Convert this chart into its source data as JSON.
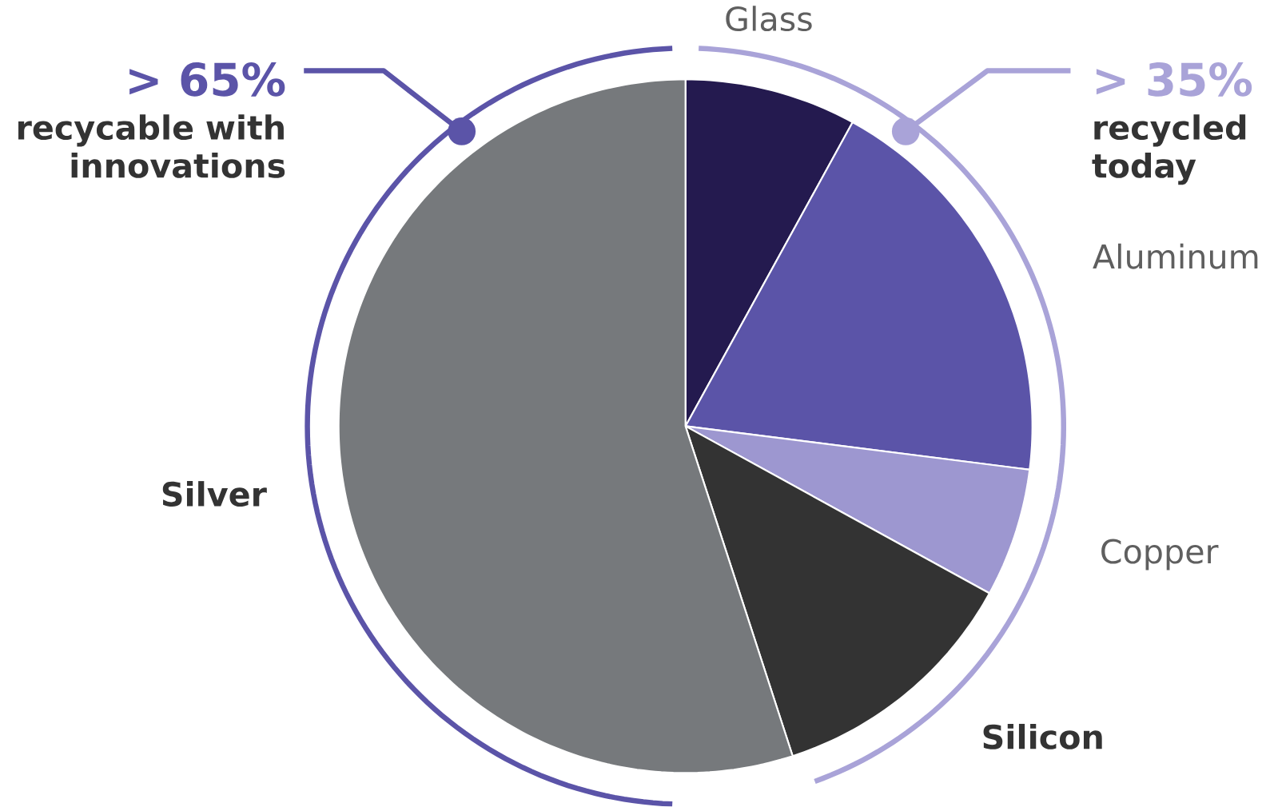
{
  "chart_data": {
    "type": "pie",
    "categories": [
      "Glass",
      "Aluminum",
      "Copper",
      "Silicon",
      "Silver"
    ],
    "values": [
      8,
      19,
      6,
      12,
      55
    ],
    "colors": [
      "#241a4f",
      "#5b54a8",
      "#9d97d0",
      "#333333",
      "#76797c"
    ],
    "annotations": [
      "> 65%",
      "recycable with innovations",
      "> 35%",
      "recycled today"
    ]
  }
}
